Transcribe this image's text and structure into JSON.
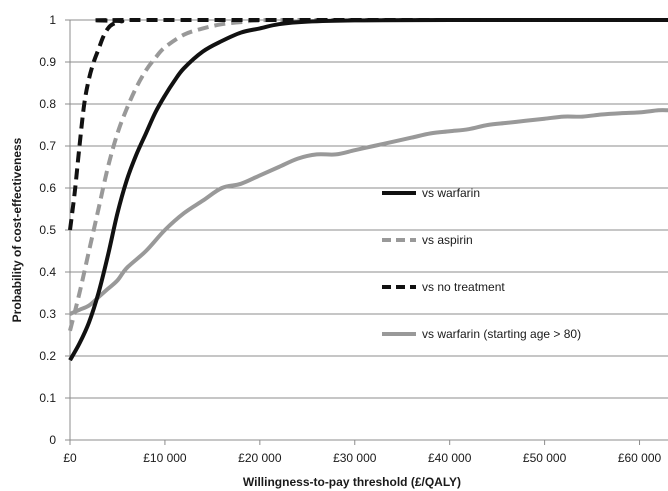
{
  "chart_data": {
    "type": "line",
    "xlabel": "Willingness-to-pay threshold (£/QALY)",
    "ylabel": "Probability of cost-effectiveness",
    "xlim": [
      0,
      63000
    ],
    "ylim": [
      0,
      1
    ],
    "x_ticks": [
      {
        "value": 0,
        "label": "£0"
      },
      {
        "value": 10000,
        "label": "£10 000"
      },
      {
        "value": 20000,
        "label": "£20 000"
      },
      {
        "value": 30000,
        "label": "£30 000"
      },
      {
        "value": 40000,
        "label": "£40 000"
      },
      {
        "value": 50000,
        "label": "£50 000"
      },
      {
        "value": 60000,
        "label": "£60 000"
      }
    ],
    "y_ticks": [
      {
        "value": 0,
        "label": "0"
      },
      {
        "value": 0.1,
        "label": "0.1"
      },
      {
        "value": 0.2,
        "label": "0.2"
      },
      {
        "value": 0.3,
        "label": "0.3"
      },
      {
        "value": 0.4,
        "label": "0.4"
      },
      {
        "value": 0.5,
        "label": "0.5"
      },
      {
        "value": 0.6,
        "label": "0.6"
      },
      {
        "value": 0.7,
        "label": "0.7"
      },
      {
        "value": 0.8,
        "label": "0.8"
      },
      {
        "value": 0.9,
        "label": "0.9"
      },
      {
        "value": 1,
        "label": "1"
      }
    ],
    "grid": "horizontal",
    "legend_position": "right",
    "series": [
      {
        "name": "vs warfarin",
        "color": "#111111",
        "dash": "solid",
        "points": [
          [
            0,
            0.19
          ],
          [
            1000,
            0.23
          ],
          [
            2000,
            0.28
          ],
          [
            3000,
            0.35
          ],
          [
            4000,
            0.44
          ],
          [
            5000,
            0.54
          ],
          [
            6000,
            0.62
          ],
          [
            7000,
            0.68
          ],
          [
            8000,
            0.73
          ],
          [
            9000,
            0.78
          ],
          [
            10000,
            0.82
          ],
          [
            11000,
            0.855
          ],
          [
            12000,
            0.885
          ],
          [
            14000,
            0.925
          ],
          [
            16000,
            0.95
          ],
          [
            18000,
            0.97
          ],
          [
            20000,
            0.98
          ],
          [
            22000,
            0.99
          ],
          [
            25000,
            0.996
          ],
          [
            30000,
            0.999
          ],
          [
            40000,
            1
          ],
          [
            63000,
            1
          ]
        ]
      },
      {
        "name": "vs aspirin",
        "color": "#999999",
        "dash": "dashed",
        "points": [
          [
            0,
            0.26
          ],
          [
            1000,
            0.35
          ],
          [
            2000,
            0.45
          ],
          [
            3000,
            0.55
          ],
          [
            4000,
            0.65
          ],
          [
            5000,
            0.73
          ],
          [
            6000,
            0.79
          ],
          [
            7000,
            0.84
          ],
          [
            8000,
            0.88
          ],
          [
            9000,
            0.91
          ],
          [
            10000,
            0.935
          ],
          [
            12000,
            0.965
          ],
          [
            14000,
            0.98
          ],
          [
            16000,
            0.99
          ],
          [
            18000,
            0.995
          ],
          [
            20000,
            0.999
          ],
          [
            25000,
            1
          ],
          [
            63000,
            1
          ]
        ]
      },
      {
        "name": "vs no treatment",
        "color": "#111111",
        "dash": "dashed",
        "points": [
          [
            0,
            0.5
          ],
          [
            500,
            0.59
          ],
          [
            1000,
            0.7
          ],
          [
            1500,
            0.8
          ],
          [
            2000,
            0.86
          ],
          [
            2500,
            0.9
          ],
          [
            3000,
            0.93
          ],
          [
            3500,
            0.96
          ],
          [
            4000,
            0.98
          ],
          [
            4500,
            0.99
          ],
          [
            5500,
            0.997
          ],
          [
            7000,
            1
          ],
          [
            63000,
            1
          ]
        ]
      },
      {
        "name": "vs warfarin (starting age > 80)",
        "color": "#999999",
        "dash": "solid",
        "points": [
          [
            0,
            0.3
          ],
          [
            1000,
            0.31
          ],
          [
            2000,
            0.32
          ],
          [
            3000,
            0.34
          ],
          [
            4000,
            0.36
          ],
          [
            5000,
            0.38
          ],
          [
            6000,
            0.41
          ],
          [
            8000,
            0.45
          ],
          [
            10000,
            0.5
          ],
          [
            12000,
            0.54
          ],
          [
            14000,
            0.57
          ],
          [
            16000,
            0.6
          ],
          [
            18000,
            0.61
          ],
          [
            20000,
            0.63
          ],
          [
            22000,
            0.65
          ],
          [
            24000,
            0.67
          ],
          [
            26000,
            0.68
          ],
          [
            28000,
            0.68
          ],
          [
            30000,
            0.69
          ],
          [
            32000,
            0.7
          ],
          [
            34000,
            0.71
          ],
          [
            36000,
            0.72
          ],
          [
            38000,
            0.73
          ],
          [
            40000,
            0.735
          ],
          [
            42000,
            0.74
          ],
          [
            44000,
            0.75
          ],
          [
            46000,
            0.755
          ],
          [
            48000,
            0.76
          ],
          [
            50000,
            0.765
          ],
          [
            52000,
            0.77
          ],
          [
            54000,
            0.77
          ],
          [
            56000,
            0.775
          ],
          [
            58000,
            0.778
          ],
          [
            60000,
            0.78
          ],
          [
            62000,
            0.785
          ],
          [
            63000,
            0.785
          ]
        ]
      }
    ]
  }
}
